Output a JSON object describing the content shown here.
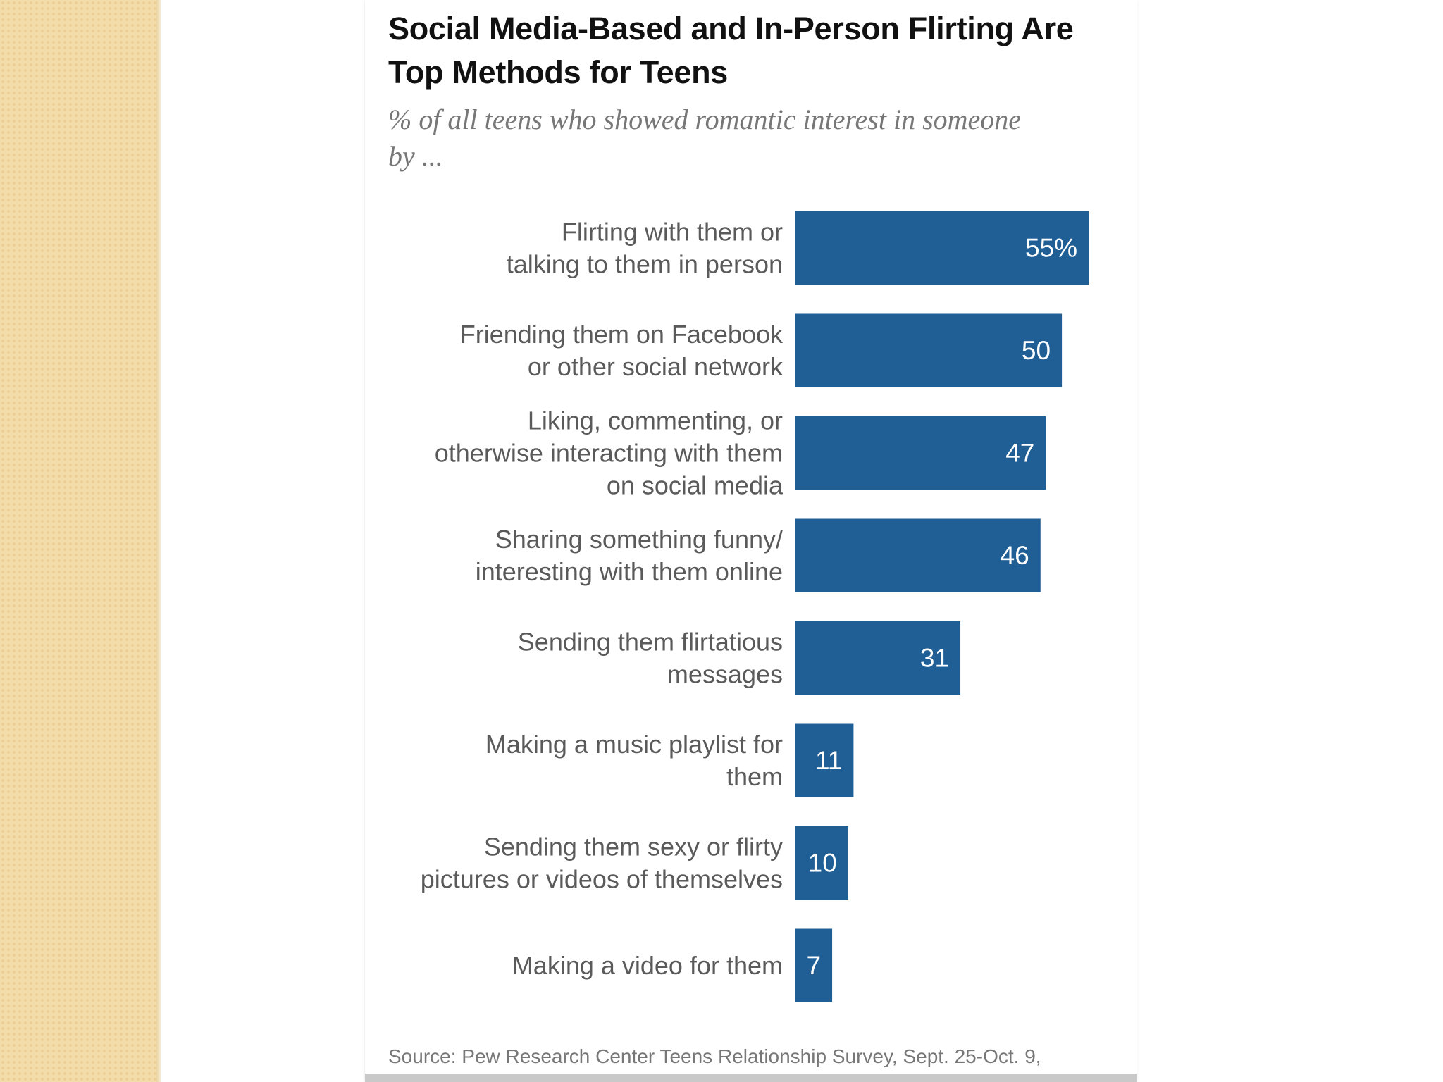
{
  "slide": {
    "source": "Source:  Pew Research Center Teens Relationship Survey, Sept. 25-Oct. 9,"
  },
  "colors": {
    "bar": "#1f5f96",
    "sidebar": "#f3dcaa",
    "label_text": "#5a5a5a"
  },
  "chart_data": {
    "type": "bar",
    "orientation": "horizontal",
    "title": "Social Media-Based and In-Person Flirting Are Top Methods for Teens",
    "subtitle": "% of all teens who showed romantic interest in someone by ...",
    "xlim": [
      0,
      55
    ],
    "categories": [
      [
        "Flirting with them or",
        "talking to them in person"
      ],
      [
        "Friending them on Facebook",
        "or other social network"
      ],
      [
        "Liking, commenting, or",
        "otherwise interacting with them",
        "on social media"
      ],
      [
        "Sharing something funny/",
        "interesting with them online"
      ],
      [
        "Sending them flirtatious",
        "messages"
      ],
      [
        "Making a music playlist for",
        "them"
      ],
      [
        "Sending them sexy or flirty",
        "pictures or videos of themselves"
      ],
      [
        "Making a video for them"
      ]
    ],
    "values": [
      55,
      50,
      47,
      46,
      31,
      11,
      10,
      7
    ],
    "value_labels": [
      "55%",
      "50",
      "47",
      "46",
      "31",
      "11",
      "10",
      "7"
    ]
  }
}
